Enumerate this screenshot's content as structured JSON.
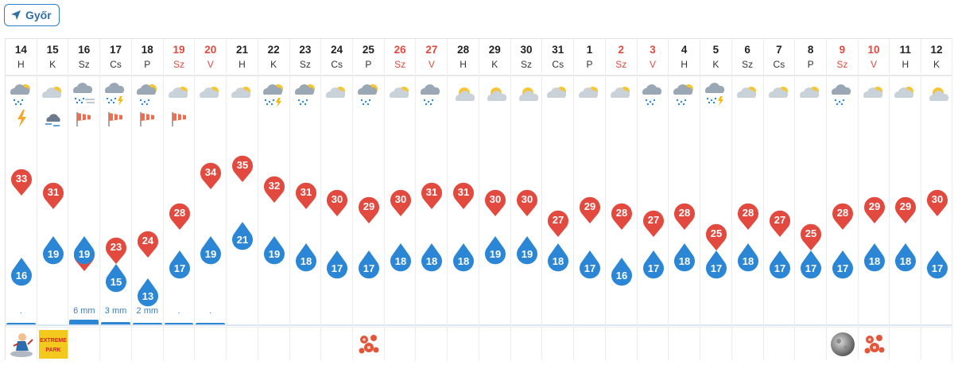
{
  "location": {
    "label": "Győr",
    "icon": "location-arrow-icon"
  },
  "colors": {
    "max_temp": "#e24a3f",
    "min_temp": "#2b86d6",
    "weekend": "#e04a3f",
    "rain": "#2b86d6",
    "accent": "#2f6fa8"
  },
  "days": [
    {
      "date": "14",
      "dow": "H",
      "weekend": false,
      "icon": "sun-cloud-rain",
      "extra": "lightning",
      "max": 33,
      "min": 16,
      "rain": ".",
      "rain_mm": 0.2,
      "bottom": "cartoon-figure"
    },
    {
      "date": "15",
      "dow": "K",
      "weekend": false,
      "icon": "sun-cloud",
      "extra": "storm-cloud",
      "max": 31,
      "min": 19,
      "rain": "",
      "rain_mm": 0,
      "bottom": "extreme-park-badge"
    },
    {
      "date": "16",
      "dow": "Sz",
      "weekend": false,
      "icon": "cloud-rain-wind",
      "extra": "windsock",
      "max": 22,
      "min": 19,
      "rain": "6 mm",
      "rain_mm": 6,
      "bottom": ""
    },
    {
      "date": "17",
      "dow": "Cs",
      "weekend": false,
      "icon": "cloud-thunder",
      "extra": "windsock",
      "max": 23,
      "min": 15,
      "rain": "3 mm",
      "rain_mm": 3,
      "bottom": ""
    },
    {
      "date": "18",
      "dow": "P",
      "weekend": false,
      "icon": "sun-cloud-rain",
      "extra": "windsock",
      "max": 24,
      "min": 13,
      "rain": "2 mm",
      "rain_mm": 2,
      "bottom": ""
    },
    {
      "date": "19",
      "dow": "Sz",
      "weekend": true,
      "icon": "sun-cloud",
      "extra": "windsock",
      "max": 28,
      "min": 17,
      "rain": ".",
      "rain_mm": 0.2,
      "bottom": ""
    },
    {
      "date": "20",
      "dow": "V",
      "weekend": true,
      "icon": "sun-cloud",
      "extra": "",
      "max": 34,
      "min": 19,
      "rain": ".",
      "rain_mm": 0.2,
      "bottom": ""
    },
    {
      "date": "21",
      "dow": "H",
      "weekend": false,
      "icon": "sun-cloud",
      "extra": "",
      "max": 35,
      "min": 21,
      "rain": "",
      "rain_mm": 0,
      "bottom": ""
    },
    {
      "date": "22",
      "dow": "K",
      "weekend": false,
      "icon": "sun-cloud-thunder",
      "extra": "",
      "max": 32,
      "min": 19,
      "rain": "",
      "rain_mm": 0,
      "bottom": ""
    },
    {
      "date": "23",
      "dow": "Sz",
      "weekend": false,
      "icon": "sun-cloud-rain",
      "extra": "",
      "max": 31,
      "min": 18,
      "rain": "",
      "rain_mm": 0,
      "bottom": ""
    },
    {
      "date": "24",
      "dow": "Cs",
      "weekend": false,
      "icon": "sun-cloud",
      "extra": "",
      "max": 30,
      "min": 17,
      "rain": "",
      "rain_mm": 0,
      "bottom": ""
    },
    {
      "date": "25",
      "dow": "P",
      "weekend": false,
      "icon": "sun-cloud-rain",
      "extra": "",
      "max": 29,
      "min": 17,
      "rain": "",
      "rain_mm": 0,
      "bottom": "flower-ornament"
    },
    {
      "date": "26",
      "dow": "Sz",
      "weekend": true,
      "icon": "sun-cloud",
      "extra": "",
      "max": 30,
      "min": 18,
      "rain": "",
      "rain_mm": 0,
      "bottom": ""
    },
    {
      "date": "27",
      "dow": "V",
      "weekend": true,
      "icon": "cloud-rain",
      "extra": "",
      "max": 31,
      "min": 18,
      "rain": "",
      "rain_mm": 0,
      "bottom": ""
    },
    {
      "date": "28",
      "dow": "H",
      "weekend": false,
      "icon": "sun-cloud-small",
      "extra": "",
      "max": 31,
      "min": 18,
      "rain": "",
      "rain_mm": 0,
      "bottom": ""
    },
    {
      "date": "29",
      "dow": "K",
      "weekend": false,
      "icon": "sun-cloud-small",
      "extra": "",
      "max": 30,
      "min": 19,
      "rain": "",
      "rain_mm": 0,
      "bottom": ""
    },
    {
      "date": "30",
      "dow": "Sz",
      "weekend": false,
      "icon": "sun-cloud-small",
      "extra": "",
      "max": 30,
      "min": 19,
      "rain": "",
      "rain_mm": 0,
      "bottom": ""
    },
    {
      "date": "31",
      "dow": "Cs",
      "weekend": false,
      "icon": "sun-cloud",
      "extra": "",
      "max": 27,
      "min": 18,
      "rain": "",
      "rain_mm": 0,
      "bottom": ""
    },
    {
      "date": "1",
      "dow": "P",
      "weekend": false,
      "icon": "sun-cloud",
      "extra": "",
      "max": 29,
      "min": 17,
      "rain": "",
      "rain_mm": 0,
      "bottom": ""
    },
    {
      "date": "2",
      "dow": "Sz",
      "weekend": true,
      "icon": "sun-cloud",
      "extra": "",
      "max": 28,
      "min": 16,
      "rain": "",
      "rain_mm": 0,
      "bottom": ""
    },
    {
      "date": "3",
      "dow": "V",
      "weekend": true,
      "icon": "cloud-rain",
      "extra": "",
      "max": 27,
      "min": 17,
      "rain": "",
      "rain_mm": 0,
      "bottom": ""
    },
    {
      "date": "4",
      "dow": "H",
      "weekend": false,
      "icon": "sun-cloud-rain",
      "extra": "",
      "max": 28,
      "min": 18,
      "rain": "",
      "rain_mm": 0,
      "bottom": ""
    },
    {
      "date": "5",
      "dow": "K",
      "weekend": false,
      "icon": "cloud-thunder",
      "extra": "",
      "max": 25,
      "min": 17,
      "rain": "",
      "rain_mm": 0,
      "bottom": ""
    },
    {
      "date": "6",
      "dow": "Sz",
      "weekend": false,
      "icon": "sun-cloud",
      "extra": "",
      "max": 28,
      "min": 18,
      "rain": "",
      "rain_mm": 0,
      "bottom": ""
    },
    {
      "date": "7",
      "dow": "Cs",
      "weekend": false,
      "icon": "sun-cloud",
      "extra": "",
      "max": 27,
      "min": 17,
      "rain": "",
      "rain_mm": 0,
      "bottom": ""
    },
    {
      "date": "8",
      "dow": "P",
      "weekend": false,
      "icon": "sun-cloud",
      "extra": "",
      "max": 25,
      "min": 17,
      "rain": "",
      "rain_mm": 0,
      "bottom": ""
    },
    {
      "date": "9",
      "dow": "Sz",
      "weekend": true,
      "icon": "cloud-rain",
      "extra": "",
      "max": 28,
      "min": 17,
      "rain": "",
      "rain_mm": 0,
      "bottom": "full-moon"
    },
    {
      "date": "10",
      "dow": "V",
      "weekend": true,
      "icon": "sun-cloud",
      "extra": "",
      "max": 29,
      "min": 18,
      "rain": "",
      "rain_mm": 0,
      "bottom": "flower-ornament"
    },
    {
      "date": "11",
      "dow": "H",
      "weekend": false,
      "icon": "sun-cloud",
      "extra": "",
      "max": 29,
      "min": 18,
      "rain": "",
      "rain_mm": 0,
      "bottom": ""
    },
    {
      "date": "12",
      "dow": "K",
      "weekend": false,
      "icon": "sun-cloud-small",
      "extra": "",
      "max": 30,
      "min": 17,
      "rain": "",
      "rain_mm": 0,
      "bottom": ""
    }
  ],
  "extreme_park": {
    "line1": "EXTREME",
    "line2": "PARK"
  }
}
